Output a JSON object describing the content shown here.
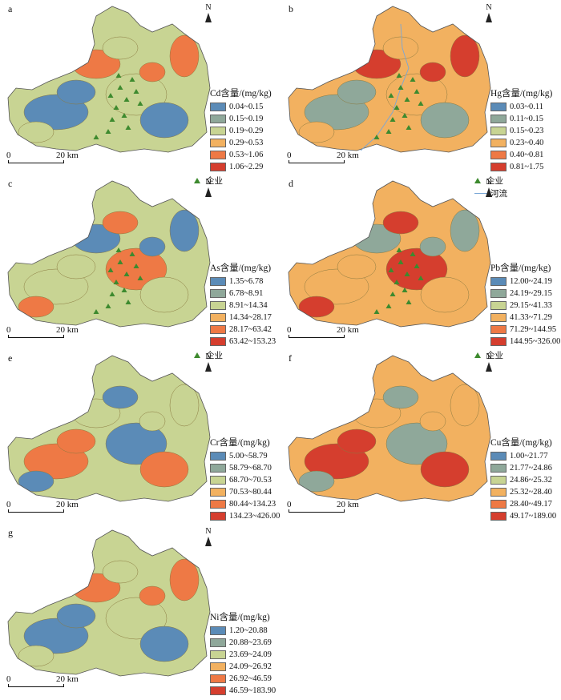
{
  "panels": [
    {
      "label": "a",
      "north": "N",
      "scale": {
        "zero": "0",
        "km": "20 km"
      },
      "title": "Cd含量/(mg/kg)",
      "enterprise": "企业",
      "river": "",
      "classes": [
        "0.04~0.15",
        "0.15~0.19",
        "0.19~0.29",
        "0.29~0.53",
        "0.53~1.06",
        "1.06~2.29"
      ],
      "colors": [
        "#5b8bb7",
        "#8fa89a",
        "#c8d493",
        "#f2b160",
        "#ee7945",
        "#d53e2e"
      ]
    },
    {
      "label": "b",
      "north": "N",
      "scale": {
        "zero": "0",
        "km": "20 km"
      },
      "title": "Hg含量/(mg/kg)",
      "enterprise": "企业",
      "river": "河流",
      "classes": [
        "0.03~0.11",
        "0.11~0.15",
        "0.15~0.23",
        "0.23~0.40",
        "0.40~0.81",
        "0.81~1.75"
      ],
      "colors": [
        "#5b8bb7",
        "#8fa89a",
        "#c8d493",
        "#f2b160",
        "#ee7945",
        "#d53e2e"
      ]
    },
    {
      "label": "c",
      "north": "N",
      "scale": {
        "zero": "0",
        "km": "20 km"
      },
      "title": "As含量/(mg/kg)",
      "enterprise": "企业",
      "river": "",
      "classes": [
        "1.35~6.78",
        "6.78~8.91",
        "8.91~14.34",
        "14.34~28.17",
        "28.17~63.42",
        "63.42~153.23"
      ],
      "colors": [
        "#5b8bb7",
        "#8fa89a",
        "#c8d493",
        "#f2b160",
        "#ee7945",
        "#d53e2e"
      ]
    },
    {
      "label": "d",
      "north": "N",
      "scale": {
        "zero": "0",
        "km": "20 km"
      },
      "title": "Pb含量/(mg/kg)",
      "enterprise": "企业",
      "river": "",
      "classes": [
        "12.00~24.19",
        "24.19~29.15",
        "29.15~41.33",
        "41.33~71.29",
        "71.29~144.95",
        "144.95~326.00"
      ],
      "colors": [
        "#5b8bb7",
        "#8fa89a",
        "#c8d493",
        "#f2b160",
        "#ee7945",
        "#d53e2e"
      ]
    },
    {
      "label": "e",
      "north": "N",
      "scale": {
        "zero": "0",
        "km": "20 km"
      },
      "title": "Cr含量/(mg/kg)",
      "enterprise": "",
      "river": "",
      "classes": [
        "5.00~58.79",
        "58.79~68.70",
        "68.70~70.53",
        "70.53~80.44",
        "80.44~134.23",
        "134.23~426.00"
      ],
      "colors": [
        "#5b8bb7",
        "#8fa89a",
        "#c8d493",
        "#f2b160",
        "#ee7945",
        "#d53e2e"
      ]
    },
    {
      "label": "f",
      "north": "N",
      "scale": {
        "zero": "0",
        "km": "20 km"
      },
      "title": "Cu含量/(mg/kg)",
      "enterprise": "",
      "river": "",
      "classes": [
        "1.00~21.77",
        "21.77~24.86",
        "24.86~25.32",
        "25.32~28.40",
        "28.40~49.17",
        "49.17~189.00"
      ],
      "colors": [
        "#5b8bb7",
        "#8fa89a",
        "#c8d493",
        "#f2b160",
        "#ee7945",
        "#d53e2e"
      ]
    },
    {
      "label": "g",
      "north": "N",
      "scale": {
        "zero": "0",
        "km": "20 km"
      },
      "title": "Ni含量/(mg/kg)",
      "enterprise": "",
      "river": "",
      "classes": [
        "1.20~20.88",
        "20.88~23.69",
        "23.69~24.09",
        "24.09~26.92",
        "26.92~46.59",
        "46.59~183.90"
      ],
      "colors": [
        "#5b8bb7",
        "#8fa89a",
        "#c8d493",
        "#f2b160",
        "#ee7945",
        "#d53e2e"
      ]
    }
  ]
}
